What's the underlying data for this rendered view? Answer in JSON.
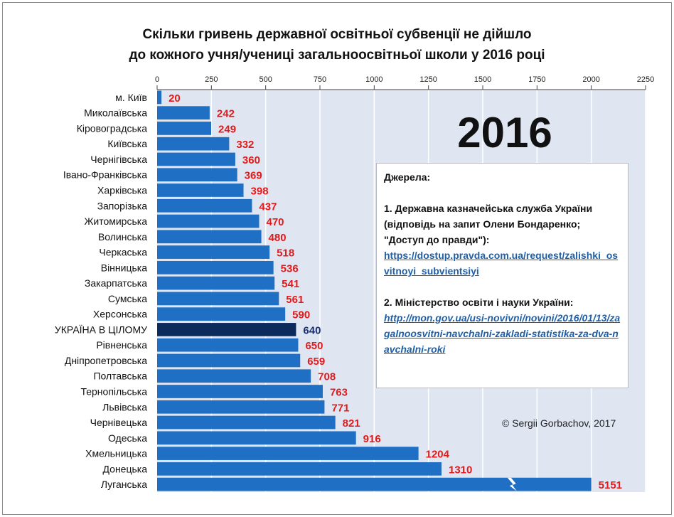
{
  "title_line1": "Скільки гривень державної освітньої субвенції не дійшло",
  "title_line2": "до кожного учня/учениці загальноосвітньої  школи у 2016 році",
  "year_label": "2016",
  "copyright": "© Sergii Gorbachov, 2017",
  "sources": {
    "heading": "Джерела:",
    "s1_text": "1. Державна  казначейська служба України (відповідь на запит Олени Бондаренко; \"Доступ до правди\"):",
    "s1_link": "https://dostup.pravda.com.ua/request/zalishki_osvitnoyi_subvientsiyi",
    "s2_text": "2. Міністерство освіти і науки України:",
    "s2_link": "http://mon.gov.ua/usi-novivni/novini/2016/01/13/zagalnoosvitni-navchalni-zakladi-statistika-za-dva-navchalni-roki"
  },
  "colors": {
    "bar": "#1f6fc5",
    "bar_highlight": "#0d2a5c",
    "value_text": "#e21a1a",
    "value_highlight": "#1a2f6e",
    "plot_bg": "#dfe6f1",
    "grid": "#ffffff"
  },
  "chart_data": {
    "type": "bar",
    "orientation": "horizontal",
    "title": "Скільки гривень державної освітньої субвенції не дійшло до кожного учня/учениці загальноосвітньої  школи у 2016 році",
    "xlim": [
      0,
      2250
    ],
    "ticks": [
      0,
      250,
      500,
      750,
      1000,
      1250,
      1500,
      1750,
      2000,
      2250
    ],
    "tick_labels": [
      "0",
      "250",
      "500",
      "750",
      "1000",
      "1250",
      "1500",
      "1750",
      "2000",
      "2250"
    ],
    "axis_position": "top",
    "highlight_category": "УКРАЇНА В ЦІЛОМУ",
    "broken_bar_category": "Луганська",
    "categories": [
      "м. Київ",
      "Миколаївська",
      "Кіровоградська",
      "Київська",
      "Чернігівська",
      "Івано-Франківська",
      "Харківська",
      "Запорізька",
      "Житомирська",
      "Волинська",
      "Черкаська",
      "Вінницька",
      "Закарпатська",
      "Сумська",
      "Херсонська",
      "УКРАЇНА В ЦІЛОМУ",
      "Рівненська",
      "Дніпропетровська",
      "Полтавська",
      "Тернопільська",
      "Львівська",
      "Чернівецька",
      "Одеська",
      "Хмельницька",
      "Донецька",
      "Луганська"
    ],
    "values": [
      20,
      242,
      249,
      332,
      360,
      369,
      398,
      437,
      470,
      480,
      518,
      536,
      541,
      561,
      590,
      640,
      650,
      659,
      708,
      763,
      771,
      821,
      916,
      1204,
      1310,
      5151
    ],
    "value_labels": [
      "20",
      "242",
      "249",
      "332",
      "360",
      "369",
      "398",
      "437",
      "470",
      "480",
      "518",
      "536",
      "541",
      "561",
      "590",
      "640",
      "650",
      "659",
      "708",
      "763",
      "771",
      "821",
      "916",
      "1204",
      "1310",
      "5151"
    ]
  }
}
